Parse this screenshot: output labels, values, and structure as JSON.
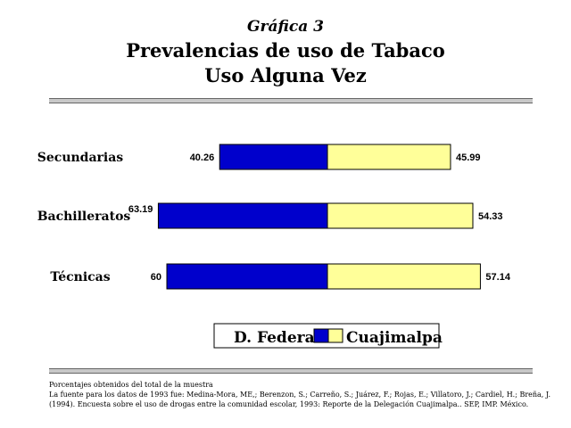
{
  "header": {
    "subtitle": "Gráfica 3",
    "title_line1": "Prevalencias de uso de Tabaco",
    "title_line2": "Uso Alguna Vez"
  },
  "chart_data": {
    "type": "bar",
    "orientation": "horizontal",
    "stacked": "diverging",
    "categories": [
      "Secundarias",
      "Bachilleratos",
      "Técnicas"
    ],
    "series": [
      {
        "name": "D. Federal",
        "values": [
          40.26,
          63.19,
          60
        ],
        "color": "#0000cc"
      },
      {
        "name": "Cuajimalpa",
        "values": [
          45.99,
          54.33,
          57.14
        ],
        "color": "#ffff99"
      }
    ],
    "value_labels": {
      "D. Federal": [
        "40.26",
        "63.19",
        "60"
      ],
      "Cuajimalpa": [
        "45.99",
        "54.33",
        "57.14"
      ]
    },
    "legend_position": "bottom",
    "grid": false
  },
  "notes": {
    "line1": "Porcentajes obtenidos del total de la muestra",
    "line2": "La fuente para los datos de 1993 fue: Medina-Mora, ME,; Berenzon, S.; Carreño, S.; Juárez, F.; Rojas, E.; Villatoro, J.; Cardiel, H.; Breña, J.",
    "line3": "(1994). Encuesta sobre el uso de drogas entre la comunidad escolar, 1993: Reporte de la Delegación Cuajimalpa.. SEP, IMP. México."
  }
}
